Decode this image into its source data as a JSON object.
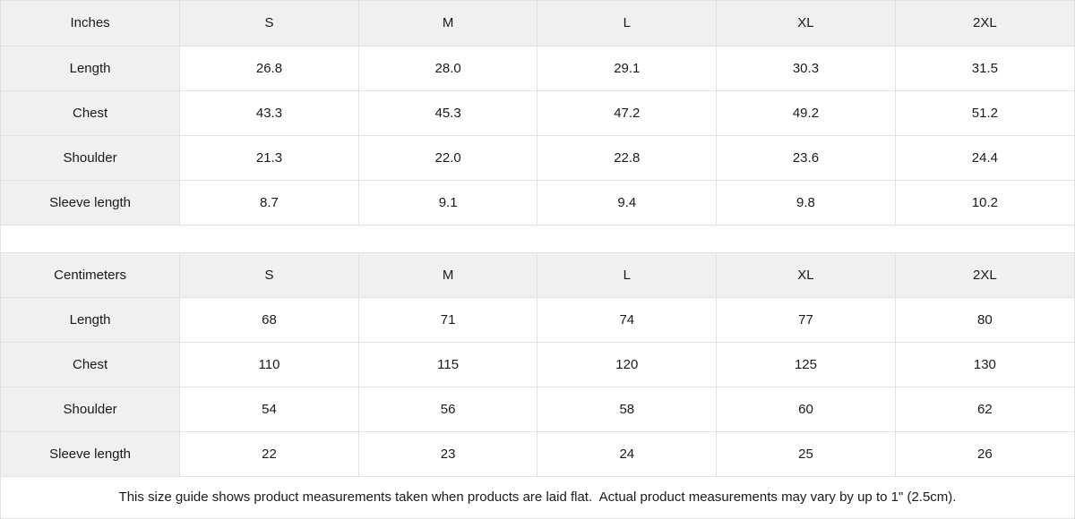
{
  "chart_data": [
    {
      "type": "table",
      "title": "Inches",
      "columns": [
        "Inches",
        "S",
        "M",
        "L",
        "XL",
        "2XL"
      ],
      "rows": [
        [
          "Length",
          "26.8",
          "28.0",
          "29.1",
          "30.3",
          "31.5"
        ],
        [
          "Chest",
          "43.3",
          "45.3",
          "47.2",
          "49.2",
          "51.2"
        ],
        [
          "Shoulder",
          "21.3",
          "22.0",
          "22.8",
          "23.6",
          "24.4"
        ],
        [
          "Sleeve length",
          "8.7",
          "9.1",
          "9.4",
          "9.8",
          "10.2"
        ]
      ]
    },
    {
      "type": "table",
      "title": "Centimeters",
      "columns": [
        "Centimeters",
        "S",
        "M",
        "L",
        "XL",
        "2XL"
      ],
      "rows": [
        [
          "Length",
          "68",
          "71",
          "74",
          "77",
          "80"
        ],
        [
          "Chest",
          "110",
          "115",
          "120",
          "125",
          "130"
        ],
        [
          "Shoulder",
          "54",
          "56",
          "58",
          "60",
          "62"
        ],
        [
          "Sleeve length",
          "22",
          "23",
          "24",
          "25",
          "26"
        ]
      ]
    }
  ],
  "footer": {
    "note": "This size guide shows product measurements taken when products are laid flat.  Actual product measurements may vary by up to 1\" (2.5cm)."
  },
  "colors": {
    "header_bg": "#f0f0f0",
    "label_bg": "#f0f0f0",
    "cell_bg": "#ffffff",
    "border": "#e1e1e1",
    "text": "#1a1a1a"
  }
}
